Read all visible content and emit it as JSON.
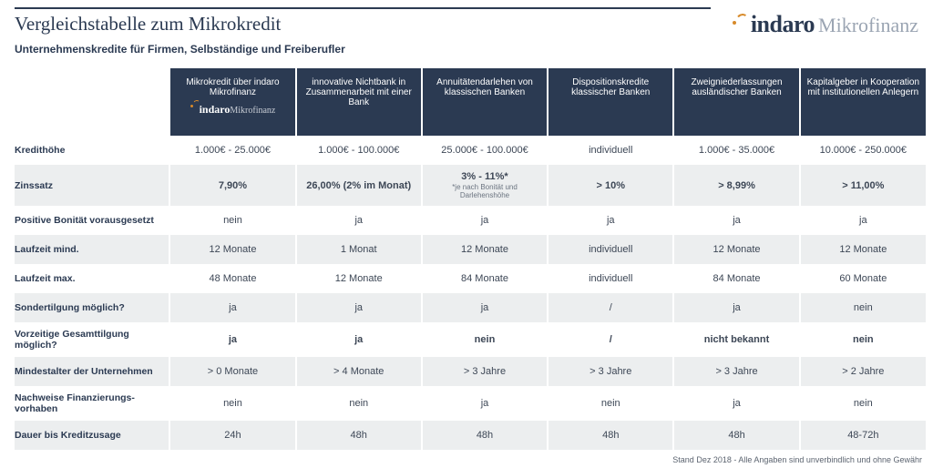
{
  "header": {
    "title": "Vergleichstabelle zum Mikrokredit",
    "subtitle": "Unternehmenskredite für Firmen, Selbständige und Freiberufler",
    "logo_text": "indaro",
    "logo_suffix": "Mikrofinanz"
  },
  "table": {
    "columns": [
      {
        "label": "Mikrokredit über indaro Mikrofinanz",
        "has_logo": true
      },
      {
        "label": "innovative Nichtbank in Zusammenarbeit mit einer Bank",
        "has_logo": false
      },
      {
        "label": "Annuitätendarlehen von klassischen Banken",
        "has_logo": false
      },
      {
        "label": "Dispositionskredite klassischer Banken",
        "has_logo": false
      },
      {
        "label": "Zweigniederlassungen ausländischer Banken",
        "has_logo": false
      },
      {
        "label": "Kapitalgeber in Kooperation mit institutionellen Anlegern",
        "has_logo": false
      }
    ],
    "rows": [
      {
        "label": "Kredithöhe",
        "stripe": false,
        "bold": false,
        "cells": [
          "1.000€ - 25.000€",
          "1.000€ - 100.000€",
          "25.000€ - 100.000€",
          "individuell",
          "1.000€ - 35.000€",
          "10.000€ - 250.000€"
        ]
      },
      {
        "label": "Zinssatz",
        "stripe": true,
        "bold": true,
        "cells": [
          "7,90%",
          "26,00% (2% im Monat)",
          "3% - 11%*",
          "> 10%",
          "> 8,99%",
          "> 11,00%"
        ],
        "subnotes": {
          "2": "*je nach Bonität und Darlehenshöhe"
        }
      },
      {
        "label": "Positive Bonität vorausgesetzt",
        "stripe": false,
        "bold": false,
        "cells": [
          "nein",
          "ja",
          "ja",
          "ja",
          "ja",
          "ja"
        ]
      },
      {
        "label": "Laufzeit mind.",
        "stripe": true,
        "bold": false,
        "cells": [
          "12 Monate",
          "1 Monat",
          "12 Monate",
          "individuell",
          "12 Monate",
          "12 Monate"
        ]
      },
      {
        "label": "Laufzeit max.",
        "stripe": false,
        "bold": false,
        "cells": [
          "48 Monate",
          "12 Monate",
          "84 Monate",
          "individuell",
          "84 Monate",
          "60 Monate"
        ]
      },
      {
        "label": "Sondertilgung möglich?",
        "stripe": true,
        "bold": false,
        "cells": [
          "ja",
          "ja",
          "ja",
          "/",
          "ja",
          "nein"
        ]
      },
      {
        "label": "Vorzeitige Gesamttilgung möglich?",
        "stripe": false,
        "bold": true,
        "cells": [
          "ja",
          "ja",
          "nein",
          "/",
          "nicht bekannt",
          "nein"
        ]
      },
      {
        "label": "Mindestalter der Unternehmen",
        "stripe": true,
        "bold": false,
        "cells": [
          "> 0 Monate",
          "> 4 Monate",
          "> 3 Jahre",
          "> 3 Jahre",
          "> 3 Jahre",
          "> 2 Jahre"
        ]
      },
      {
        "label": "Nachweise Finanzierungs-vorhaben",
        "stripe": false,
        "bold": false,
        "cells": [
          "nein",
          "nein",
          "ja",
          "nein",
          "ja",
          "nein"
        ]
      },
      {
        "label": "Dauer bis Kreditzusage",
        "stripe": true,
        "bold": false,
        "cells": [
          "24h",
          "48h",
          "48h",
          "48h",
          "48h",
          "48-72h"
        ]
      }
    ]
  },
  "footer": "Stand Dez 2018 - Alle Angaben sind unverbindlich und ohne Gewähr",
  "colors": {
    "header_bg": "#2b3a52",
    "stripe_bg": "#eceeef",
    "text": "#2b3a52",
    "accent": "#d78a2a",
    "logo_suffix": "#9ba5b3"
  }
}
